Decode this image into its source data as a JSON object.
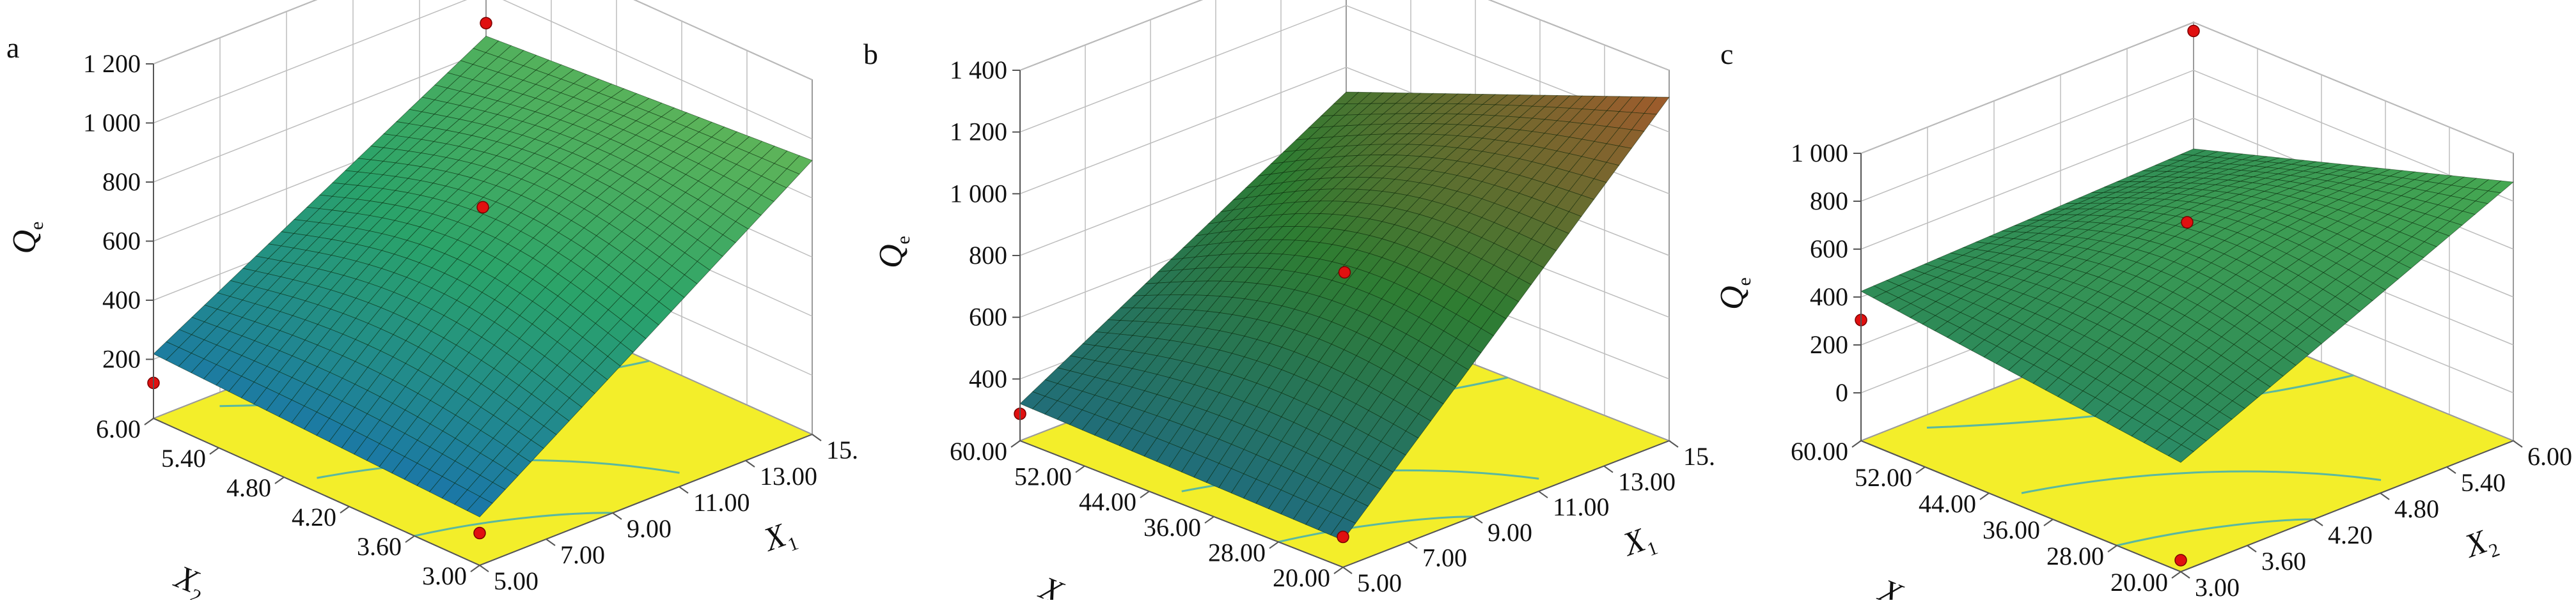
{
  "chart_data": [
    {
      "type": "surface3d",
      "panel_label": "a",
      "title": "",
      "z_label": {
        "main": "Q",
        "sub": "e"
      },
      "x_label": {
        "main": "X",
        "sub": "1"
      },
      "y_label": {
        "main": "X",
        "sub": "2"
      },
      "x_ticks": [
        "5.00",
        "7.00",
        "9.00",
        "11.00",
        "13.00",
        "15.00"
      ],
      "y_ticks": [
        "3.00",
        "3.60",
        "4.20",
        "4.80",
        "5.40",
        "6.00"
      ],
      "z_ticks": [
        "200",
        "400",
        "600",
        "800",
        "1 000",
        "1 200"
      ],
      "x_range": [
        5,
        15
      ],
      "y_range": [
        3,
        6
      ],
      "z_range": [
        100,
        1200
      ],
      "corner_values": {
        "x_min_y_min": 250,
        "x_max_y_min": 950,
        "x_min_y_max": 300,
        "x_max_y_max": 880
      },
      "design_points": [
        {
          "x": 5,
          "y": 3,
          "z": 200
        },
        {
          "x": 10,
          "y": 4.5,
          "z": 780
        },
        {
          "x": 15,
          "y": 6,
          "z": 920
        },
        {
          "x": 5,
          "y": 6,
          "z": 210
        }
      ],
      "colors": {
        "low": "#1565c0",
        "mid": "#2aa36a",
        "high": "#8bc34a",
        "floor": "#f3ee2a",
        "contour": "#5ab8a0"
      }
    },
    {
      "type": "surface3d",
      "panel_label": "b",
      "title": "",
      "z_label": {
        "main": "Q",
        "sub": "e"
      },
      "x_label": {
        "main": "X",
        "sub": "1"
      },
      "y_label": {
        "main": "X",
        "sub": "3"
      },
      "x_ticks": [
        "5.00",
        "7.00",
        "9.00",
        "11.00",
        "13.00",
        "15.00"
      ],
      "y_ticks": [
        "20.00",
        "28.00",
        "36.00",
        "44.00",
        "52.00",
        "60.00"
      ],
      "z_ticks": [
        "400",
        "600",
        "800",
        "1 000",
        "1 200",
        "1 400"
      ],
      "x_range": [
        5,
        15
      ],
      "y_range": [
        20,
        60
      ],
      "z_range": [
        300,
        1400
      ],
      "corner_values": {
        "x_min_y_min": 380,
        "x_max_y_min": 1320,
        "x_min_y_max": 410,
        "x_max_y_max": 960
      },
      "design_points": [
        {
          "x": 5,
          "y": 20,
          "z": 390
        },
        {
          "x": 10,
          "y": 40,
          "z": 800
        },
        {
          "x": 15,
          "y": 60,
          "z": 1400
        },
        {
          "x": 5,
          "y": 60,
          "z": 380
        }
      ],
      "colors": {
        "low": "#1e6a8a",
        "mid": "#2e7d32",
        "high": "#b5542b",
        "floor": "#f3ee2a",
        "contour": "#5ab8a0"
      }
    },
    {
      "type": "surface3d",
      "panel_label": "c",
      "title": "",
      "z_label": {
        "main": "Q",
        "sub": "e"
      },
      "x_label": {
        "main": "X",
        "sub": "2"
      },
      "y_label": {
        "main": "X",
        "sub": "3"
      },
      "x_ticks": [
        "3.00",
        "3.60",
        "4.20",
        "4.80",
        "5.40",
        "6.00"
      ],
      "y_ticks": [
        "20.00",
        "28.00",
        "36.00",
        "44.00",
        "52.00",
        "60.00"
      ],
      "z_ticks": [
        "0",
        "200",
        "400",
        "600",
        "800",
        "1 000"
      ],
      "x_range": [
        3,
        6
      ],
      "y_range": [
        20,
        60
      ],
      "z_range": [
        0,
        1000
      ],
      "corner_values": {
        "x_min_y_min": 380,
        "x_max_y_min": 900,
        "x_min_y_max": 520,
        "x_max_y_max": 560
      },
      "design_points": [
        {
          "x": 3,
          "y": 20,
          "z": 40
        },
        {
          "x": 4.5,
          "y": 40,
          "z": 760
        },
        {
          "x": 6,
          "y": 60,
          "z": 970
        },
        {
          "x": 3,
          "y": 60,
          "z": 420
        }
      ],
      "colors": {
        "low": "#1f8a9a",
        "mid": "#2e8b57",
        "high": "#4caf50",
        "floor": "#f3ee2a",
        "contour": "#5ab8a0"
      }
    }
  ]
}
